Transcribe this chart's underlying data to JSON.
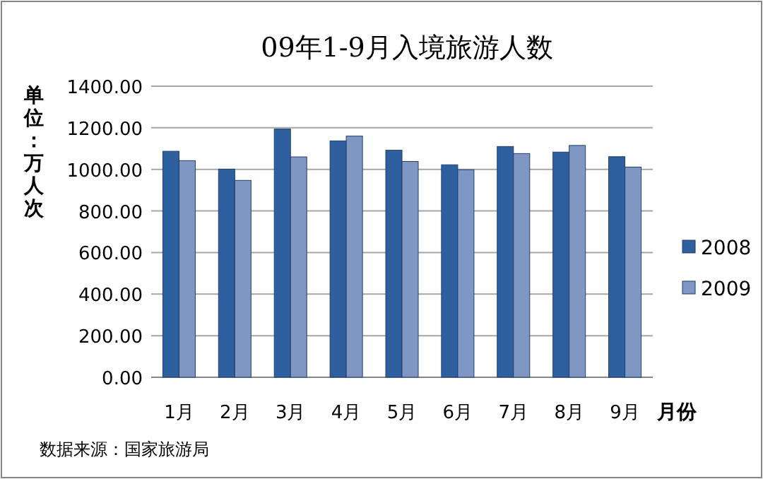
{
  "chart_data": {
    "type": "bar",
    "title": "09年1-9月入境旅游人数",
    "ylabel": "单位：万人次",
    "xlabel": "月份",
    "categories": [
      "1月",
      "2月",
      "3月",
      "4月",
      "5月",
      "6月",
      "7月",
      "8月",
      "9月"
    ],
    "series": [
      {
        "name": "2008",
        "color": "#2e5f9e",
        "values": [
          1087,
          1001,
          1194,
          1137,
          1092,
          1022,
          1110,
          1083,
          1061
        ]
      },
      {
        "name": "2009",
        "color": "#7f97c2",
        "values": [
          1042,
          947,
          1060,
          1160,
          1038,
          998,
          1076,
          1115,
          1011
        ]
      }
    ],
    "ylim": [
      0,
      1400
    ],
    "yticks": [
      {
        "value": 0,
        "label": "0.00"
      },
      {
        "value": 200,
        "label": "200.00"
      },
      {
        "value": 400,
        "label": "400.00"
      },
      {
        "value": 600,
        "label": "600.00"
      },
      {
        "value": 800,
        "label": "800.00"
      },
      {
        "value": 1000,
        "label": "1000.00"
      },
      {
        "value": 1200,
        "label": "1200.00"
      },
      {
        "value": 1400,
        "label": "1400.00"
      }
    ],
    "grid": "y",
    "legend": "right",
    "annotations": [
      "数据来源：国家旅游局"
    ]
  }
}
